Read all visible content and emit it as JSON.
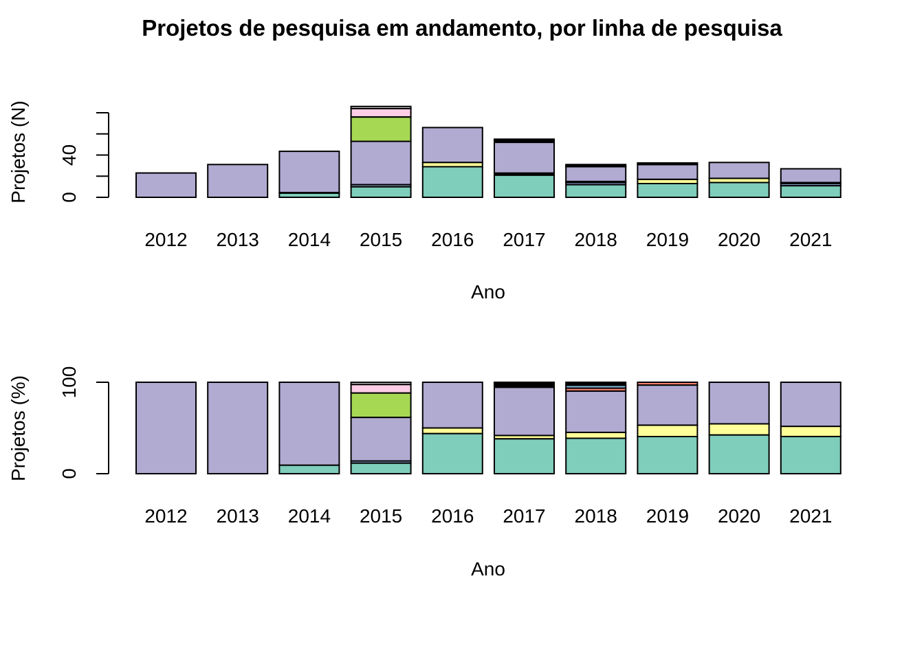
{
  "title": "Projetos de pesquisa em andamento, por linha de pesquisa",
  "chart_data": [
    {
      "type": "bar",
      "stacked": true,
      "xlabel": "Ano",
      "ylabel": "Projetos (N)",
      "ylim": [
        0,
        80
      ],
      "yticks": [
        0,
        20,
        40,
        60,
        80
      ],
      "yticklabels": [
        "0",
        "",
        "40",
        "",
        ""
      ],
      "grid": false,
      "categories": [
        "2012",
        "2013",
        "2014",
        "2015",
        "2016",
        "2017",
        "2018",
        "2019",
        "2020",
        "2021"
      ],
      "series": [
        {
          "color": "#7FCDBB",
          "values": [
            0,
            0,
            4,
            10,
            29,
            21,
            12,
            13,
            14,
            11
          ]
        },
        {
          "color": "#8DA0CB",
          "values": [
            0,
            0,
            0.5,
            2,
            0,
            1,
            2,
            0,
            0,
            2
          ]
        },
        {
          "color": "#FFFF99",
          "values": [
            0,
            0,
            0,
            0,
            4,
            1,
            1,
            4,
            4,
            1
          ]
        },
        {
          "color": "#B1ABD2",
          "values": [
            23,
            31,
            39,
            41,
            33,
            29,
            14,
            14,
            15,
            13
          ]
        },
        {
          "color": "#A6D854",
          "values": [
            0,
            0,
            0,
            23,
            0,
            0,
            0,
            0,
            0,
            0
          ]
        },
        {
          "color": "#FCCDE5",
          "values": [
            0,
            0,
            0,
            8,
            0,
            0,
            0,
            0,
            0,
            0
          ]
        },
        {
          "color": "#FB8072",
          "values": [
            0,
            0,
            0,
            0,
            0,
            0,
            0.5,
            0.5,
            0,
            0
          ]
        },
        {
          "color": "#80B1D3",
          "values": [
            0,
            0,
            0,
            0,
            0,
            0,
            0.5,
            0,
            0,
            0
          ]
        },
        {
          "color": "#D9D9D9",
          "values": [
            0,
            0,
            0,
            2,
            0,
            0,
            0,
            0,
            0,
            0
          ]
        },
        {
          "color": "#000000",
          "values": [
            0,
            0,
            0,
            0,
            0,
            3,
            1,
            1,
            0,
            0
          ]
        }
      ]
    },
    {
      "type": "bar",
      "stacked": true,
      "xlabel": "Ano",
      "ylabel": "Projetos (%)",
      "ylim": [
        0,
        100
      ],
      "yticks": [
        0,
        100
      ],
      "yticklabels": [
        "0",
        "100"
      ],
      "grid": false,
      "categories": [
        "2012",
        "2013",
        "2014",
        "2015",
        "2016",
        "2017",
        "2018",
        "2019",
        "2020",
        "2021"
      ],
      "series": [
        {
          "color": "#7FCDBB",
          "values": [
            0,
            0,
            9.3,
            11.6,
            43.9,
            38.2,
            38.7,
            40.6,
            42.4,
            40.7
          ]
        },
        {
          "color": "#8DA0CB",
          "values": [
            0,
            0,
            0,
            2.3,
            0,
            0,
            0,
            0,
            0,
            0
          ]
        },
        {
          "color": "#FFFF99",
          "values": [
            0,
            0,
            0,
            0,
            6.1,
            3.6,
            6.5,
            12.5,
            12.1,
            11.1
          ]
        },
        {
          "color": "#B1ABD2",
          "values": [
            100,
            100,
            90.7,
            47.7,
            50.0,
            52.7,
            45.2,
            43.8,
            45.5,
            48.2
          ]
        },
        {
          "color": "#A6D854",
          "values": [
            0,
            0,
            0,
            26.7,
            0,
            0,
            0,
            0,
            0,
            0
          ]
        },
        {
          "color": "#FCCDE5",
          "values": [
            0,
            0,
            0,
            9.3,
            0,
            0,
            0,
            0,
            0,
            0
          ]
        },
        {
          "color": "#FB8072",
          "values": [
            0,
            0,
            0,
            0,
            0,
            0,
            3.2,
            3.1,
            0,
            0
          ]
        },
        {
          "color": "#80B1D3",
          "values": [
            0,
            0,
            0,
            0,
            0,
            0,
            3.2,
            0,
            0,
            0
          ]
        },
        {
          "color": "#D9D9D9",
          "values": [
            0,
            0,
            0,
            2.3,
            0,
            0,
            0,
            0,
            0,
            0
          ]
        },
        {
          "color": "#000000",
          "values": [
            0,
            0,
            0,
            0,
            0,
            5.5,
            3.2,
            0,
            0,
            0
          ]
        }
      ]
    }
  ]
}
